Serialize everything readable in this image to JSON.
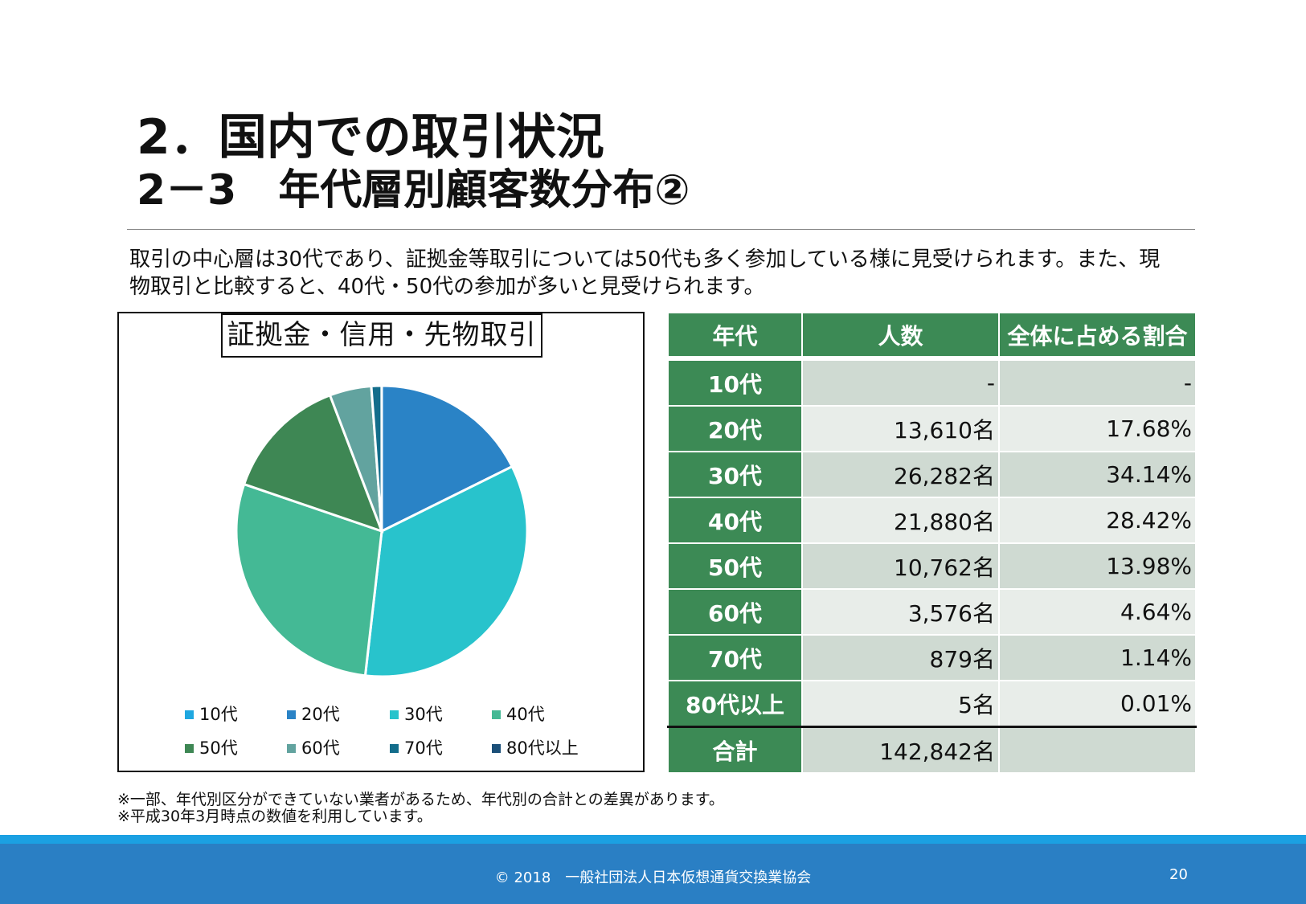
{
  "title": {
    "line1": "2．国内での取引状況",
    "line2": "2－3　年代層別顧客数分布②"
  },
  "body_text": "取引の中心層は30代であり、証拠金等取引については50代も多く参加している様に見受けられます。また、現物取引と比較すると、40代・50代の参加が多いと見受けられます。",
  "chart_data": {
    "type": "pie",
    "title": "証拠金・信用・先物取引",
    "categories": [
      "10代",
      "20代",
      "30代",
      "40代",
      "50代",
      "60代",
      "70代",
      "80代以上"
    ],
    "values": [
      0,
      13610,
      26282,
      21880,
      10762,
      3576,
      879,
      5
    ],
    "colors": [
      "#1fa7e0",
      "#2a83c6",
      "#28c3cc",
      "#44b995",
      "#3e8754",
      "#62a39f",
      "#136d8b",
      "#1b4f78"
    ],
    "legend_placement": "bottom",
    "start": "top-clockwise"
  },
  "table": {
    "headers": [
      "年代",
      "人数",
      "全体に占める割合"
    ],
    "rows": [
      [
        "10代",
        "-",
        "-"
      ],
      [
        "20代",
        "13,610名",
        "17.68%"
      ],
      [
        "30代",
        "26,282名",
        "34.14%"
      ],
      [
        "40代",
        "21,880名",
        "28.42%"
      ],
      [
        "50代",
        "10,762名",
        "13.98%"
      ],
      [
        "60代",
        "3,576名",
        "4.64%"
      ],
      [
        "70代",
        "879名",
        "1.14%"
      ],
      [
        "80代以上",
        "5名",
        "0.01%"
      ]
    ],
    "total": [
      "合計",
      "142,842名",
      ""
    ]
  },
  "notes": [
    "※一部、年代別区分ができていない業者があるため、年代別の合計との差異があります。",
    "※平成30年3月時点の数値を利用しています。"
  ],
  "footer": {
    "copyright": "© 2018　一般社団法人日本仮想通貨交換業協会",
    "page": "20"
  },
  "colors": {
    "table_header": "#3c8a55",
    "footer_band": "#2a7fc4",
    "footer_stripe": "#1ba0e2"
  }
}
